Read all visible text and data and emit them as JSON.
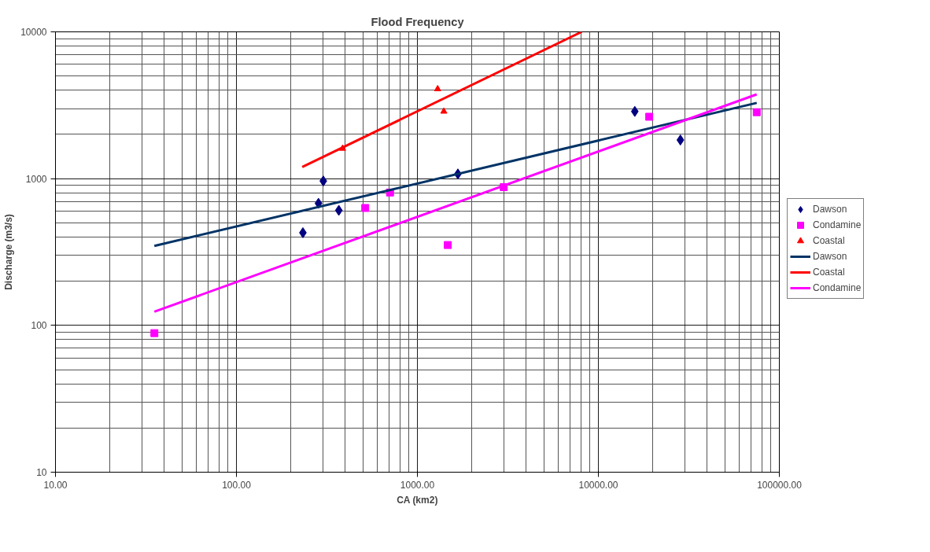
{
  "chart_data": {
    "type": "scatter",
    "title": "Flood Frequency",
    "xlabel": "CA (km2)",
    "ylabel": "Discharge (m3/s)",
    "log": "xy",
    "grid": true,
    "legend": "right",
    "xlim": [
      10,
      100000
    ],
    "ylim": [
      10,
      10000
    ],
    "xticks": [
      {
        "value": 10,
        "label": "10.00"
      },
      {
        "value": 100,
        "label": "100.00"
      },
      {
        "value": 1000,
        "label": "1000.00"
      },
      {
        "value": 10000,
        "label": "10000.00"
      },
      {
        "value": 100000,
        "label": "100000.00"
      }
    ],
    "yticks": [
      10,
      100,
      1000,
      10000
    ],
    "series": [
      {
        "name": "Dawson",
        "marker": "diamond",
        "color": "#000080",
        "x": [
          233,
          284,
          302,
          368,
          1674,
          15900,
          28400
        ],
        "values": [
          428,
          679,
          964,
          608,
          1076,
          2870,
          1833
        ]
      },
      {
        "name": "Condamine",
        "marker": "square",
        "color": "#ff00ff",
        "x": [
          35.2,
          515,
          706,
          1472,
          3000,
          19100,
          75000
        ],
        "values": [
          88.6,
          631,
          804,
          353,
          875,
          2640,
          2835
        ]
      },
      {
        "name": "Coastal",
        "marker": "triangle",
        "color": "#ff0000",
        "x": [
          386,
          1294,
          1400
        ],
        "values": [
          1604,
          4080,
          2870
        ]
      },
      {
        "name": "Dawson",
        "type": "line",
        "color": "#003366",
        "x": [
          35.2,
          75000
        ],
        "values": [
          348,
          3280
        ]
      },
      {
        "name": "Coastal",
        "type": "line",
        "color": "#ff0000",
        "x": [
          231,
          8090
        ],
        "values": [
          1200,
          10000
        ]
      },
      {
        "name": "Condamine",
        "type": "line",
        "color": "#ff00ff",
        "x": [
          35.2,
          75000
        ],
        "values": [
          124,
          3750
        ]
      }
    ]
  }
}
